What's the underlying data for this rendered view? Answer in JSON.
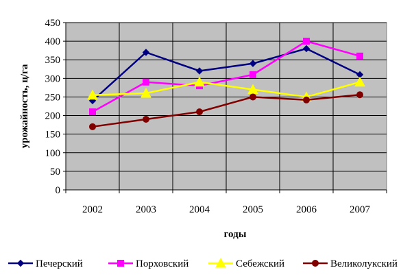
{
  "chart_data": {
    "type": "line",
    "title": "",
    "xlabel": "годы",
    "ylabel": "урожайность, ц/га",
    "categories": [
      "2002",
      "2003",
      "2004",
      "2005",
      "2006",
      "2007"
    ],
    "ylim": [
      0,
      450
    ],
    "yticks": [
      0,
      50,
      100,
      150,
      200,
      250,
      300,
      350,
      400,
      450
    ],
    "grid": true,
    "legend_position": "bottom",
    "plot_background": "#c0c0c0",
    "series": [
      {
        "name": "Печерский",
        "values": [
          240,
          370,
          320,
          340,
          380,
          310
        ],
        "color": "#000080",
        "marker": "diamond"
      },
      {
        "name": "Порховский",
        "values": [
          210,
          290,
          280,
          310,
          400,
          360
        ],
        "color": "#ff00ff",
        "marker": "square"
      },
      {
        "name": "Себежский",
        "values": [
          255,
          260,
          290,
          270,
          250,
          290
        ],
        "color": "#ffff00",
        "marker": "triangle"
      },
      {
        "name": "Великолукский",
        "values": [
          170,
          190,
          210,
          250,
          242,
          256
        ],
        "color": "#800000",
        "marker": "circle"
      }
    ]
  }
}
